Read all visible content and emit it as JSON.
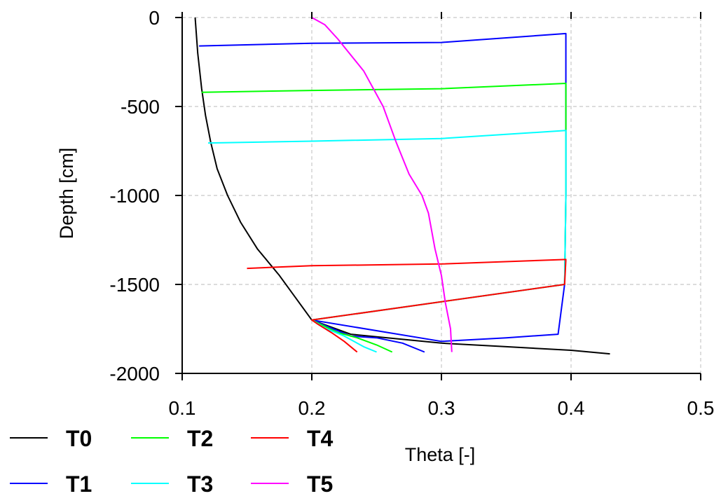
{
  "chart_data": {
    "type": "line",
    "title": "",
    "xlabel": "Theta [-]",
    "ylabel": "Depth [cm]",
    "xlim": [
      0.1,
      0.5
    ],
    "ylim": [
      -2000,
      0
    ],
    "xticks": [
      0.1,
      0.2,
      0.3,
      0.4,
      0.5
    ],
    "xtick_labels": [
      "0.1",
      "0.2",
      "0.3",
      "0.4",
      "0.5"
    ],
    "yticks": [
      0,
      -500,
      -1000,
      -1500,
      -2000
    ],
    "ytick_labels": [
      "0",
      "-500",
      "-1000",
      "-1500",
      "-2000"
    ],
    "grid": true,
    "legend_position": "bottom-left",
    "series": [
      {
        "name": "T0",
        "color": "#000000",
        "x": [
          0.11,
          0.112,
          0.115,
          0.118,
          0.122,
          0.127,
          0.135,
          0.145,
          0.158,
          0.175,
          0.2,
          0.23,
          0.3,
          0.35,
          0.4,
          0.43
        ],
        "y": [
          0,
          -200,
          -400,
          -550,
          -700,
          -850,
          -1000,
          -1150,
          -1300,
          -1450,
          -1700,
          -1780,
          -1830,
          -1850,
          -1870,
          -1890
        ]
      },
      {
        "name": "T1",
        "color": "#0000ff",
        "x": [
          0.287,
          0.27,
          0.25,
          0.23,
          0.2,
          0.3,
          0.35,
          0.39,
          0.395,
          0.396,
          0.396,
          0.3,
          0.2,
          0.113
        ],
        "y": [
          -1880,
          -1830,
          -1800,
          -1790,
          -1700,
          -1820,
          -1800,
          -1780,
          -1500,
          -1000,
          -90,
          -140,
          -145,
          -160
        ]
      },
      {
        "name": "T2",
        "color": "#00ff00",
        "x": [
          0.262,
          0.25,
          0.235,
          0.22,
          0.2,
          0.395,
          0.396,
          0.396,
          0.3,
          0.2,
          0.115
        ],
        "y": [
          -1880,
          -1840,
          -1800,
          -1770,
          -1700,
          -1500,
          -1000,
          -370,
          -400,
          -410,
          -420
        ]
      },
      {
        "name": "T3",
        "color": "#00ffff",
        "x": [
          0.25,
          0.24,
          0.225,
          0.21,
          0.2,
          0.395,
          0.396,
          0.396,
          0.3,
          0.2,
          0.12
        ],
        "y": [
          -1880,
          -1850,
          -1790,
          -1745,
          -1700,
          -1500,
          -1000,
          -635,
          -680,
          -695,
          -705
        ]
      },
      {
        "name": "T4",
        "color": "#ff0000",
        "x": [
          0.235,
          0.225,
          0.215,
          0.205,
          0.2,
          0.395,
          0.396,
          0.396,
          0.3,
          0.2,
          0.15
        ],
        "y": [
          -1880,
          -1820,
          -1770,
          -1725,
          -1700,
          -1500,
          -1360,
          -1360,
          -1385,
          -1395,
          -1410
        ]
      },
      {
        "name": "T5",
        "color": "#ff00ff",
        "x": [
          0.2,
          0.21,
          0.22,
          0.24,
          0.255,
          0.265,
          0.275,
          0.285,
          0.29,
          0.295,
          0.3,
          0.303,
          0.307,
          0.308
        ],
        "y": [
          0,
          -40,
          -120,
          -300,
          -500,
          -700,
          -880,
          -1000,
          -1100,
          -1300,
          -1450,
          -1600,
          -1750,
          -1880
        ]
      }
    ]
  }
}
